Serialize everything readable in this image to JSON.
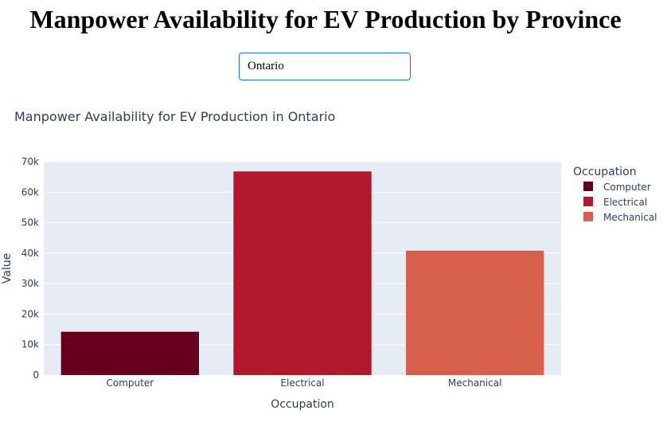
{
  "page": {
    "heading": "Manpower Availability for EV Production by Province"
  },
  "dropdown": {
    "selected": "Ontario"
  },
  "chart_data": {
    "type": "bar",
    "title": "Manpower Availability for EV Production in Ontario",
    "xlabel": "Occupation",
    "ylabel": "Value",
    "categories": [
      "Computer",
      "Electrical",
      "Mechanical"
    ],
    "values": [
      14200,
      66800,
      40800
    ],
    "ylim": [
      0,
      70000
    ],
    "yticks": [
      0,
      10000,
      20000,
      30000,
      40000,
      50000,
      60000,
      70000
    ],
    "ytick_labels": [
      "0",
      "10k",
      "20k",
      "30k",
      "40k",
      "50k",
      "60k",
      "70k"
    ],
    "colors": [
      "#67001f",
      "#b2182b",
      "#d6604d"
    ],
    "grid": true,
    "legend": {
      "title": "Occupation",
      "items": [
        "Computer",
        "Electrical",
        "Mechanical"
      ],
      "placement": "right"
    }
  }
}
